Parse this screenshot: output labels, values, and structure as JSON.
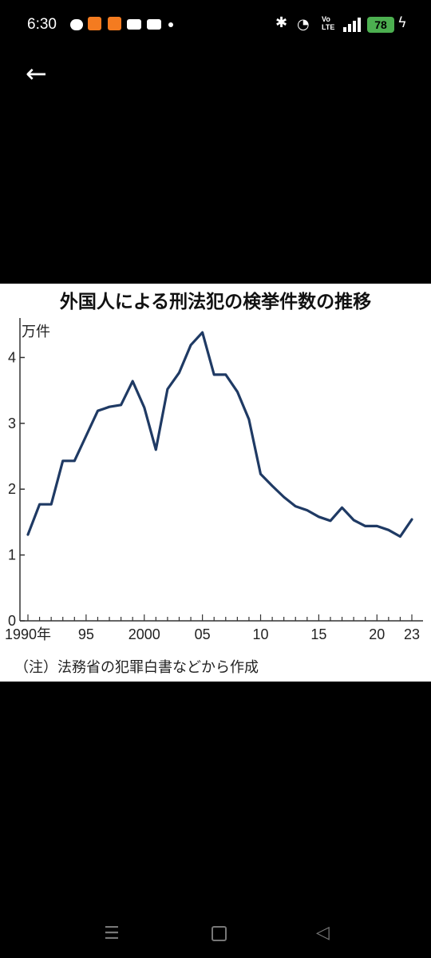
{
  "status_bar": {
    "time": "6:30",
    "battery": "78",
    "volte": "Vo\nLTE"
  },
  "nav": {
    "back_icon": "arrow-left-icon"
  },
  "chart_data": {
    "type": "line",
    "title": "外国人による刑法犯の検挙件数の推移",
    "ylabel": "万件",
    "note": "（注）法務省の犯罪白書などから作成",
    "ylim": [
      0,
      4.6
    ],
    "xlim": [
      1990,
      2023
    ],
    "x_ticks": [
      {
        "value": 1990,
        "label": "1990年"
      },
      {
        "value": 1995,
        "label": "95"
      },
      {
        "value": 2000,
        "label": "2000"
      },
      {
        "value": 2005,
        "label": "05"
      },
      {
        "value": 2010,
        "label": "10"
      },
      {
        "value": 2015,
        "label": "15"
      },
      {
        "value": 2020,
        "label": "20"
      },
      {
        "value": 2023,
        "label": "23"
      }
    ],
    "y_ticks": [
      {
        "value": 0,
        "label": "0"
      },
      {
        "value": 1,
        "label": "1"
      },
      {
        "value": 2,
        "label": "2"
      },
      {
        "value": 3,
        "label": "3"
      },
      {
        "value": 4,
        "label": "4"
      }
    ],
    "line_color": "#1f3a64",
    "series": [
      {
        "x": [
          1990,
          1991,
          1992,
          1993,
          1994,
          1995,
          1996,
          1997,
          1998,
          1999,
          2000,
          2001,
          2002,
          2003,
          2004,
          2005,
          2006,
          2007,
          2008,
          2009,
          2010,
          2011,
          2012,
          2013,
          2014,
          2015,
          2016,
          2017,
          2018,
          2019,
          2020,
          2021,
          2022,
          2023
        ],
        "values": [
          1.31,
          1.77,
          1.77,
          2.43,
          2.43,
          2.81,
          3.19,
          3.25,
          3.28,
          3.64,
          3.24,
          2.6,
          3.52,
          3.77,
          4.19,
          4.38,
          3.74,
          3.74,
          3.48,
          3.06,
          2.23,
          2.05,
          1.88,
          1.74,
          1.68,
          1.58,
          1.52,
          1.72,
          1.53,
          1.44,
          1.44,
          1.38,
          1.28,
          1.54
        ]
      }
    ]
  }
}
